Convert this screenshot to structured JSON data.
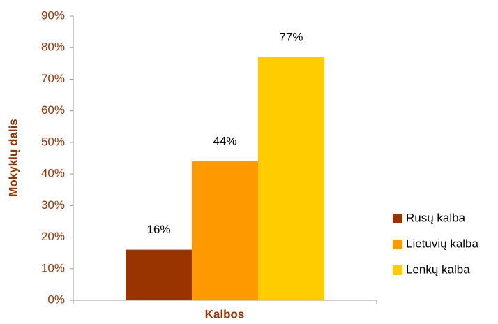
{
  "chart_data": {
    "type": "bar",
    "y_label": "Mokyklų dalis",
    "x_label": "Kalbos",
    "categories": [
      null
    ],
    "series": [
      {
        "name": "Rusų kalba",
        "color": "#993300",
        "values": [
          16
        ],
        "value_labels": [
          "16%"
        ]
      },
      {
        "name": "Lietuvių kalba",
        "color": "#ff9900",
        "values": [
          44
        ],
        "value_labels": [
          "44%"
        ]
      },
      {
        "name": "Lenkų kalba",
        "color": "#ffcc00",
        "values": [
          77
        ],
        "value_labels": [
          "77%"
        ]
      }
    ],
    "ylim": [
      0,
      90
    ],
    "yticks": [
      {
        "value": 0,
        "label": "0%"
      },
      {
        "value": 10,
        "label": "10%"
      },
      {
        "value": 20,
        "label": "20%"
      },
      {
        "value": 30,
        "label": "30%"
      },
      {
        "value": 40,
        "label": "40%"
      },
      {
        "value": 50,
        "label": "50%"
      },
      {
        "value": 60,
        "label": "60%"
      },
      {
        "value": 70,
        "label": "70%"
      },
      {
        "value": 80,
        "label": "80%"
      },
      {
        "value": 90,
        "label": "90%"
      }
    ],
    "legend": "right"
  }
}
